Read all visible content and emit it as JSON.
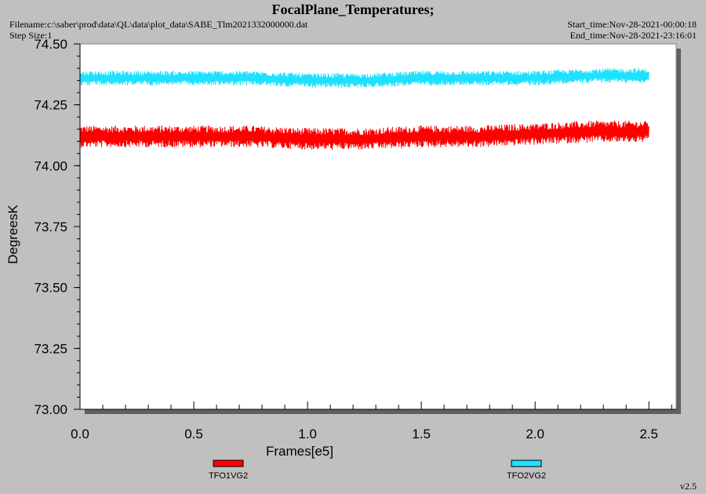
{
  "header": {
    "title": "FocalPlane_Temperatures;",
    "filename": "Filename:c:\\saber\\prod\\data\\QL\\data\\plot_data\\SABE_Tlm2021332000000.dat",
    "step_size": "Step Size:1",
    "start_time": "Start_time:Nov-28-2021-00:00:18",
    "end_time": "End_time:Nov-28-2021-23:16:01"
  },
  "version": "v2.5",
  "chart_data": {
    "type": "line",
    "title": "FocalPlane_Temperatures;",
    "xlabel": "Frames[e5]",
    "ylabel": "DegreesK",
    "xlim": [
      0.0,
      2.62
    ],
    "ylim": [
      73.0,
      74.5
    ],
    "x_ticks": [
      "0.0",
      "0.5",
      "1.0",
      "1.5",
      "2.0",
      "2.5"
    ],
    "x_tick_values": [
      0.0,
      0.5,
      1.0,
      1.5,
      2.0,
      2.5
    ],
    "y_ticks": [
      "73.00",
      "73.25",
      "73.50",
      "73.75",
      "74.00",
      "74.25",
      "74.50"
    ],
    "y_tick_values": [
      73.0,
      73.25,
      73.5,
      73.75,
      74.0,
      74.25,
      74.5
    ],
    "grid": false,
    "legend_position": "bottom",
    "x": [
      0.0,
      0.25,
      0.5,
      0.75,
      1.0,
      1.25,
      1.5,
      1.75,
      2.0,
      2.25,
      2.5
    ],
    "series": [
      {
        "name": "TFO1VG2",
        "color": "#ff0000",
        "values": [
          74.12,
          74.12,
          74.12,
          74.12,
          74.11,
          74.11,
          74.12,
          74.12,
          74.13,
          74.14,
          74.14
        ],
        "band": 0.045
      },
      {
        "name": "TFO2VG2",
        "color": "#1ee1ff",
        "values": [
          74.36,
          74.36,
          74.36,
          74.36,
          74.35,
          74.35,
          74.36,
          74.36,
          74.36,
          74.37,
          74.37
        ],
        "band": 0.03
      }
    ]
  }
}
